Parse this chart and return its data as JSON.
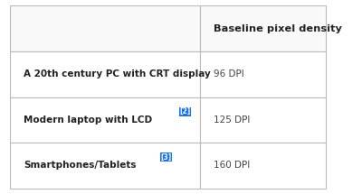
{
  "col1_header": "",
  "col2_header": "Baseline pixel density",
  "rows": [
    {
      "label": "A 20th century PC with CRT display",
      "label_suffix": "",
      "value": "96 DPI"
    },
    {
      "label": "Modern laptop with LCD",
      "label_suffix": "[2]",
      "value": "125 DPI"
    },
    {
      "label": "Smartphones/Tablets",
      "label_suffix": "[3]",
      "value": "160 DPI"
    }
  ],
  "col_split": 0.595,
  "background_color": "#ffffff",
  "border_color": "#bbbbbb",
  "label_color": "#222222",
  "value_color": "#444444",
  "superscript_color": "#1a73e8",
  "superscript_bg": "#1a73e8"
}
